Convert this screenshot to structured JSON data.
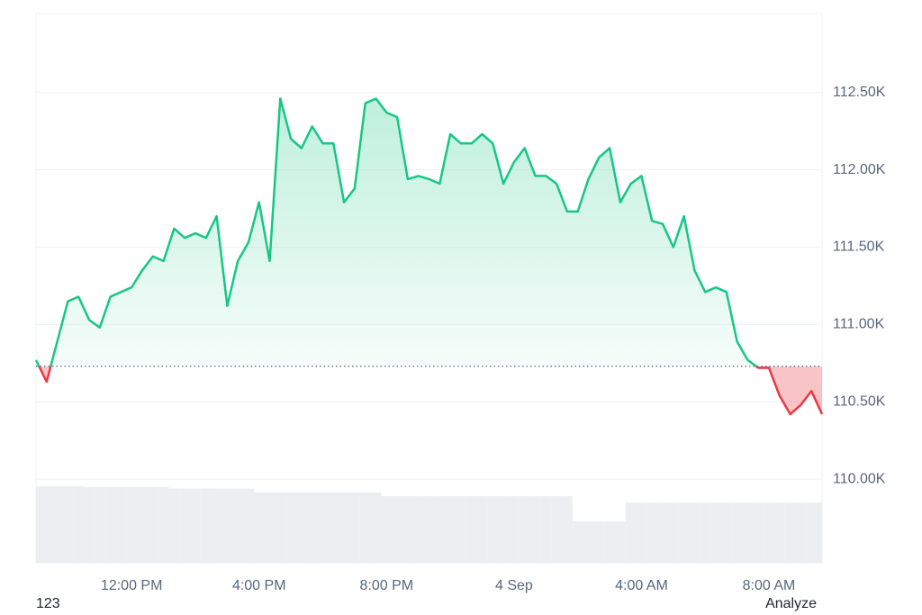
{
  "chart_data": {
    "type": "line",
    "categories": [
      null,
      null,
      null,
      null,
      null,
      null,
      null,
      null,
      null,
      "12:00 PM",
      null,
      null,
      null,
      null,
      null,
      null,
      null,
      null,
      null,
      null,
      null,
      "4:00 PM",
      null,
      null,
      null,
      null,
      null,
      null,
      null,
      null,
      null,
      null,
      null,
      "8:00 PM",
      null,
      null,
      null,
      null,
      null,
      null,
      null,
      null,
      null,
      null,
      null,
      "4 Sep",
      null,
      null,
      null,
      null,
      null,
      null,
      null,
      null,
      null,
      null,
      null,
      "4:00 AM",
      null,
      null,
      null,
      null,
      null,
      null,
      null,
      null,
      null,
      null,
      null,
      "8:00 AM",
      null,
      null,
      null,
      null,
      null
    ],
    "values": [
      110770,
      110630,
      110890,
      111150,
      111180,
      111030,
      110980,
      111180,
      111210,
      111240,
      111350,
      111440,
      111410,
      111620,
      111560,
      111590,
      111560,
      111700,
      111120,
      111410,
      111530,
      111790,
      111410,
      112460,
      112200,
      112140,
      112280,
      112170,
      112170,
      111790,
      111880,
      112430,
      112460,
      112370,
      112340,
      111940,
      111960,
      111940,
      111910,
      112230,
      112170,
      112170,
      112230,
      112170,
      111910,
      112050,
      112140,
      111960,
      111960,
      111910,
      111730,
      111730,
      111940,
      112080,
      112140,
      111790,
      111910,
      111960,
      111670,
      111650,
      111500,
      111700,
      111350,
      111210,
      111240,
      111210,
      110890,
      110770,
      110720,
      110720,
      110540,
      110420,
      110480,
      110570,
      110420
    ],
    "baseline": 110730,
    "up_color": "#16c784",
    "down_color": "#ea3943",
    "ylim": [
      109460,
      113010
    ],
    "yticks": [
      {
        "value": 110000,
        "label": "110.00K"
      },
      {
        "value": 110500,
        "label": "110.50K"
      },
      {
        "value": 111000,
        "label": "111.00K"
      },
      {
        "value": 111500,
        "label": "111.50K"
      },
      {
        "value": 112000,
        "label": "112.00K"
      },
      {
        "value": 112500,
        "label": "112.50K"
      }
    ],
    "grid": true,
    "volume": {
      "color": "#eceef2",
      "ylim": [
        0,
        100
      ],
      "values": [
        100,
        100,
        100,
        100,
        100,
        99,
        99,
        99,
        99,
        99,
        99,
        99,
        99,
        97,
        97,
        97,
        97,
        97,
        97,
        97,
        97,
        92,
        92,
        92,
        92,
        92,
        92,
        92,
        92,
        92,
        92,
        92,
        92,
        87,
        87,
        87,
        87,
        87,
        87,
        87,
        87,
        87,
        87,
        87,
        87,
        87,
        87,
        87,
        87,
        87,
        87,
        54,
        54,
        54,
        54,
        54,
        79,
        79,
        79,
        79,
        79,
        79,
        79,
        79,
        79,
        79,
        79,
        79,
        79,
        79,
        79,
        79,
        79,
        79,
        79
      ]
    },
    "footer_left": "123",
    "footer_right": "Analyze"
  }
}
